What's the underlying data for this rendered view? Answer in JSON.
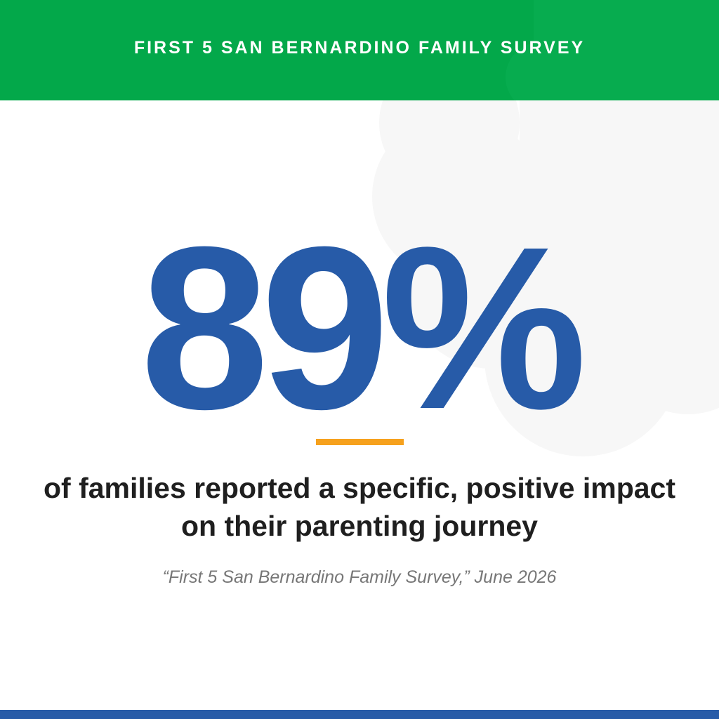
{
  "header": {
    "title": "FIRST 5 SAN BERNARDINO FAMILY SURVEY"
  },
  "stat": {
    "value": "89%"
  },
  "statement": {
    "line1": "of families reported a specific, positive impact",
    "line2": "on their parenting journey"
  },
  "citation": {
    "text": "“First 5 San Bernardino Family Survey,” June 2026"
  },
  "colors": {
    "header_green": "#03a84a",
    "stat_blue": "#275ba8",
    "accent_orange": "#f6a11d",
    "footer_blue": "#275ba8",
    "cloud_gray": "#f7f7f7"
  }
}
